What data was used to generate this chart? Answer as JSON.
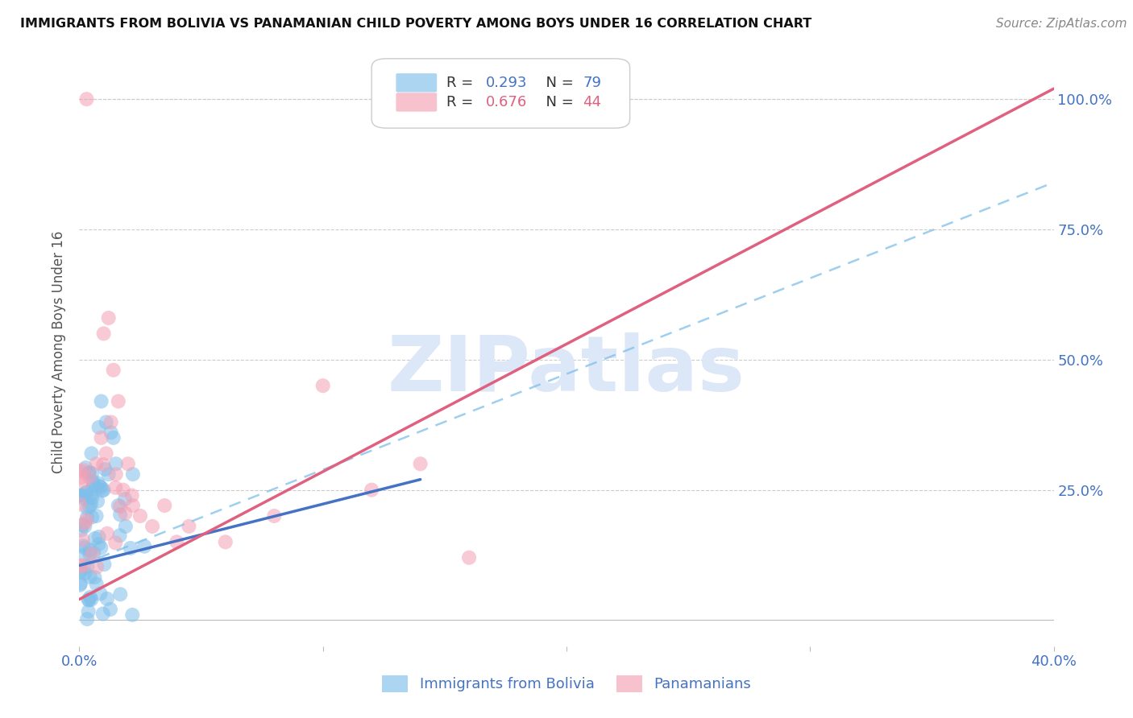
{
  "title": "IMMIGRANTS FROM BOLIVIA VS PANAMANIAN CHILD POVERTY AMONG BOYS UNDER 16 CORRELATION CHART",
  "source": "Source: ZipAtlas.com",
  "ylabel": "Child Poverty Among Boys Under 16",
  "legend_label1": "Immigrants from Bolivia",
  "legend_label2": "Panamanians",
  "R1": 0.293,
  "N1": 79,
  "R2": 0.676,
  "N2": 44,
  "xlim": [
    0.0,
    0.4
  ],
  "ylim": [
    -0.05,
    1.08
  ],
  "color_blue": "#7fbfea",
  "color_pink": "#f4a0b5",
  "color_blue_line": "#4472c4",
  "color_pink_line": "#e06080",
  "color_axis_labels": "#4472c4",
  "color_pink_legend": "#e06080",
  "background_color": "#ffffff",
  "grid_color": "#cccccc",
  "watermark": "ZIPatlas",
  "watermark_color": "#dce8f8",
  "blue_line_x": [
    0.0,
    0.14
  ],
  "blue_line_y": [
    0.105,
    0.27
  ],
  "pink_line_x": [
    0.0,
    0.4
  ],
  "pink_line_y": [
    0.04,
    1.02
  ],
  "dashed_line_x": [
    0.0,
    0.4
  ],
  "dashed_line_y": [
    0.105,
    0.84
  ]
}
